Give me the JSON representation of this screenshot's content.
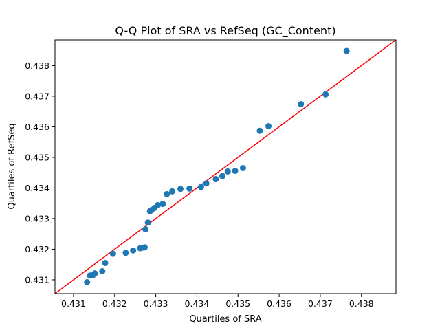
{
  "chart_data": {
    "type": "scatter",
    "title": "Q-Q Plot of SRA vs RefSeq (GC_Content)",
    "xlabel": "Quartiles of SRA",
    "ylabel": "Quartiles of RefSeq",
    "xlim": [
      0.43055,
      0.43884
    ],
    "ylim": [
      0.43055,
      0.43884
    ],
    "xticks": [
      {
        "value": 0.431,
        "label": "0.431"
      },
      {
        "value": 0.432,
        "label": "0.432"
      },
      {
        "value": 0.433,
        "label": "0.433"
      },
      {
        "value": 0.434,
        "label": "0.434"
      },
      {
        "value": 0.435,
        "label": "0.435"
      },
      {
        "value": 0.436,
        "label": "0.436"
      },
      {
        "value": 0.437,
        "label": "0.437"
      },
      {
        "value": 0.438,
        "label": "0.438"
      }
    ],
    "yticks": [
      {
        "value": 0.431,
        "label": "0.431"
      },
      {
        "value": 0.432,
        "label": "0.432"
      },
      {
        "value": 0.433,
        "label": "0.433"
      },
      {
        "value": 0.434,
        "label": "0.434"
      },
      {
        "value": 0.435,
        "label": "0.435"
      },
      {
        "value": 0.436,
        "label": "0.436"
      },
      {
        "value": 0.437,
        "label": "0.437"
      },
      {
        "value": 0.438,
        "label": "0.438"
      }
    ],
    "grid": false,
    "point_color": "#1f77b4",
    "reference_line": {
      "color": "#ff0000",
      "slope": 1,
      "intercept": 0
    },
    "points": [
      {
        "x": 0.43133,
        "y": 0.43092
      },
      {
        "x": 0.4314,
        "y": 0.43114
      },
      {
        "x": 0.43147,
        "y": 0.43115
      },
      {
        "x": 0.43152,
        "y": 0.43121
      },
      {
        "x": 0.4317,
        "y": 0.43128
      },
      {
        "x": 0.43177,
        "y": 0.43155
      },
      {
        "x": 0.43196,
        "y": 0.43185
      },
      {
        "x": 0.43227,
        "y": 0.43188
      },
      {
        "x": 0.43245,
        "y": 0.43196
      },
      {
        "x": 0.43262,
        "y": 0.43203
      },
      {
        "x": 0.43267,
        "y": 0.43205
      },
      {
        "x": 0.43273,
        "y": 0.43206
      },
      {
        "x": 0.43275,
        "y": 0.43265
      },
      {
        "x": 0.43281,
        "y": 0.43287
      },
      {
        "x": 0.43286,
        "y": 0.43324
      },
      {
        "x": 0.4329,
        "y": 0.43328
      },
      {
        "x": 0.43297,
        "y": 0.43335
      },
      {
        "x": 0.43305,
        "y": 0.43344
      },
      {
        "x": 0.43317,
        "y": 0.43348
      },
      {
        "x": 0.43327,
        "y": 0.4338
      },
      {
        "x": 0.4334,
        "y": 0.43389
      },
      {
        "x": 0.4336,
        "y": 0.43397
      },
      {
        "x": 0.43382,
        "y": 0.43398
      },
      {
        "x": 0.4341,
        "y": 0.43403
      },
      {
        "x": 0.43423,
        "y": 0.43415
      },
      {
        "x": 0.43446,
        "y": 0.43429
      },
      {
        "x": 0.43462,
        "y": 0.43439
      },
      {
        "x": 0.43475,
        "y": 0.43454
      },
      {
        "x": 0.43493,
        "y": 0.43456
      },
      {
        "x": 0.43512,
        "y": 0.43465
      },
      {
        "x": 0.43553,
        "y": 0.43587
      },
      {
        "x": 0.43574,
        "y": 0.43602
      },
      {
        "x": 0.43653,
        "y": 0.43674
      },
      {
        "x": 0.43713,
        "y": 0.43706
      },
      {
        "x": 0.43764,
        "y": 0.43848
      }
    ]
  }
}
